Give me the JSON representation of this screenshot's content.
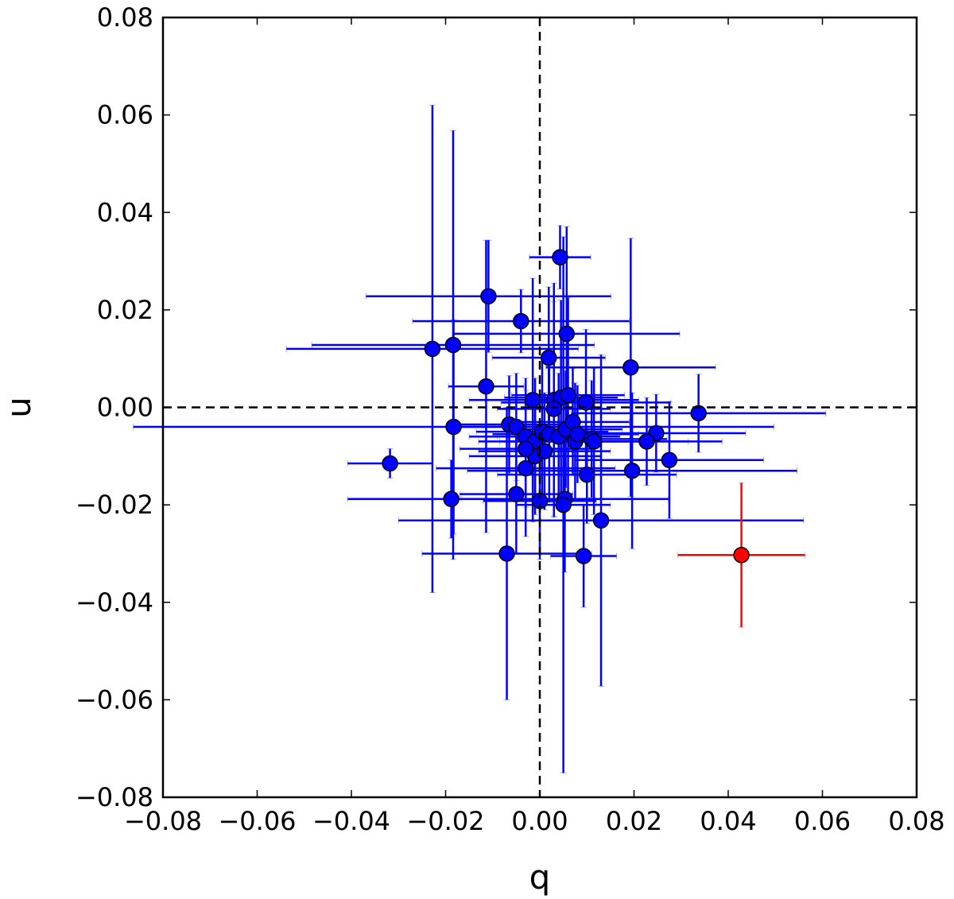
{
  "chart_data": {
    "type": "scatter",
    "xlabel": "q",
    "ylabel": "u",
    "xlim": [
      -0.08,
      0.08
    ],
    "ylim": [
      -0.08,
      0.08
    ],
    "xticks": [
      -0.08,
      -0.06,
      -0.04,
      -0.02,
      0.0,
      0.02,
      0.04,
      0.06,
      0.08
    ],
    "yticks": [
      -0.08,
      -0.06,
      -0.04,
      -0.02,
      0.0,
      0.02,
      0.04,
      0.06,
      0.08
    ],
    "xtick_labels": [
      "−0.08",
      "−0.06",
      "−0.04",
      "−0.02",
      "0.00",
      "0.02",
      "0.04",
      "0.06",
      "0.08"
    ],
    "ytick_labels": [
      "−0.08",
      "−0.06",
      "−0.04",
      "−0.02",
      "0.00",
      "0.02",
      "0.04",
      "0.06",
      "0.08"
    ],
    "reference_lines": {
      "x": 0.0,
      "y": 0.0,
      "style": "dashed",
      "color": "#000000"
    },
    "grid": false,
    "series": [
      {
        "color": "#0000ff",
        "points": [
          {
            "x": 0.0043,
            "y": 0.0308,
            "xerr": 0.0065,
            "yerr": 0.0065
          },
          {
            "x": -0.0109,
            "y": 0.0228,
            "xerr": 0.026,
            "yerr": 0.0115
          },
          {
            "x": -0.004,
            "y": 0.0177,
            "xerr": 0.023,
            "yerr": 0.0065
          },
          {
            "x": 0.0057,
            "y": 0.0151,
            "xerr": 0.024,
            "yerr": 0.022
          },
          {
            "x": -0.0228,
            "y": 0.012,
            "xerr": 0.031,
            "yerr": 0.05
          },
          {
            "x": -0.0184,
            "y": 0.0128,
            "xerr": 0.03,
            "yerr": 0.044
          },
          {
            "x": 0.0019,
            "y": 0.0102,
            "xerr": 0.012,
            "yerr": 0.0145
          },
          {
            "x": 0.0193,
            "y": 0.0082,
            "xerr": 0.018,
            "yerr": 0.0265
          },
          {
            "x": -0.0114,
            "y": 0.0043,
            "xerr": 0.008,
            "yerr": 0.03
          },
          {
            "x": 0.003,
            "y": 0.0015,
            "xerr": 0.018,
            "yerr": 0.024
          },
          {
            "x": 0.0045,
            "y": 0.002,
            "xerr": 0.012,
            "yerr": 0.02
          },
          {
            "x": 0.006,
            "y": 0.0025,
            "xerr": 0.012,
            "yerr": 0.02
          },
          {
            "x": -0.0015,
            "y": 0.0015,
            "xerr": 0.01,
            "yerr": 0.025
          },
          {
            "x": 0.003,
            "y": -0.0003,
            "xerr": 0.012,
            "yerr": 0.022
          },
          {
            "x": 0.0098,
            "y": 0.001,
            "xerr": 0.018,
            "yerr": 0.015
          },
          {
            "x": 0.0337,
            "y": -0.0012,
            "xerr": 0.027,
            "yerr": 0.008
          },
          {
            "x": -0.0183,
            "y": -0.004,
            "xerr": 0.068,
            "yerr": 0.022
          },
          {
            "x": -0.0065,
            "y": -0.0035,
            "xerr": 0.012,
            "yerr": 0.01
          },
          {
            "x": -0.005,
            "y": -0.004,
            "xerr": 0.014,
            "yerr": 0.011
          },
          {
            "x": -0.003,
            "y": -0.006,
            "xerr": 0.012,
            "yerr": 0.012
          },
          {
            "x": -0.001,
            "y": -0.007,
            "xerr": 0.012,
            "yerr": 0.013
          },
          {
            "x": 0.0005,
            "y": -0.005,
            "xerr": 0.014,
            "yerr": 0.015
          },
          {
            "x": 0.002,
            "y": -0.0055,
            "xerr": 0.012,
            "yerr": 0.014
          },
          {
            "x": 0.004,
            "y": -0.006,
            "xerr": 0.013,
            "yerr": 0.013
          },
          {
            "x": 0.0055,
            "y": -0.0045,
            "xerr": 0.012,
            "yerr": 0.012
          },
          {
            "x": 0.007,
            "y": -0.003,
            "xerr": 0.012,
            "yerr": 0.011
          },
          {
            "x": 0.0075,
            "y": -0.007,
            "xerr": 0.014,
            "yerr": 0.012
          },
          {
            "x": 0.008,
            "y": -0.0055,
            "xerr": 0.013,
            "yerr": 0.01
          },
          {
            "x": 0.011,
            "y": -0.0065,
            "xerr": 0.016,
            "yerr": 0.012
          },
          {
            "x": 0.0115,
            "y": -0.007,
            "xerr": 0.02,
            "yerr": 0.015
          },
          {
            "x": -0.001,
            "y": -0.01,
            "xerr": 0.014,
            "yerr": 0.012
          },
          {
            "x": 0.001,
            "y": -0.009,
            "xerr": 0.014,
            "yerr": 0.012
          },
          {
            "x": -0.003,
            "y": -0.0085,
            "xerr": 0.014,
            "yerr": 0.012
          },
          {
            "x": 0.0247,
            "y": -0.0053,
            "xerr": 0.019,
            "yerr": 0.008
          },
          {
            "x": 0.0227,
            "y": -0.007,
            "xerr": 0.016,
            "yerr": 0.009
          },
          {
            "x": 0.0275,
            "y": -0.0108,
            "xerr": 0.02,
            "yerr": 0.012
          },
          {
            "x": -0.0318,
            "y": -0.0115,
            "xerr": 0.009,
            "yerr": 0.003
          },
          {
            "x": 0.01,
            "y": -0.0138,
            "xerr": 0.019,
            "yerr": 0.01
          },
          {
            "x": 0.0196,
            "y": -0.013,
            "xerr": 0.035,
            "yerr": 0.016
          },
          {
            "x": -0.003,
            "y": -0.0125,
            "xerr": 0.019,
            "yerr": 0.014
          },
          {
            "x": -0.0188,
            "y": -0.0188,
            "xerr": 0.022,
            "yerr": 0.008
          },
          {
            "x": -0.005,
            "y": -0.0178,
            "xerr": 0.012,
            "yerr": 0.012
          },
          {
            "x": 0.0,
            "y": -0.0192,
            "xerr": 0.012,
            "yerr": 0.012
          },
          {
            "x": 0.0053,
            "y": -0.0188,
            "xerr": 0.022,
            "yerr": 0.015
          },
          {
            "x": 0.013,
            "y": -0.0232,
            "xerr": 0.043,
            "yerr": 0.034
          },
          {
            "x": -0.007,
            "y": -0.03,
            "xerr": 0.018,
            "yerr": 0.03
          },
          {
            "x": 0.0093,
            "y": -0.0305,
            "xerr": 0.007,
            "yerr": 0.0105
          },
          {
            "x": 0.005,
            "y": -0.02,
            "xerr": 0.01,
            "yerr": 0.055
          }
        ]
      },
      {
        "color": "#ff0000",
        "points": [
          {
            "x": 0.0428,
            "y": -0.0303,
            "xerr": 0.0135,
            "yerr": 0.0148
          }
        ]
      }
    ]
  }
}
